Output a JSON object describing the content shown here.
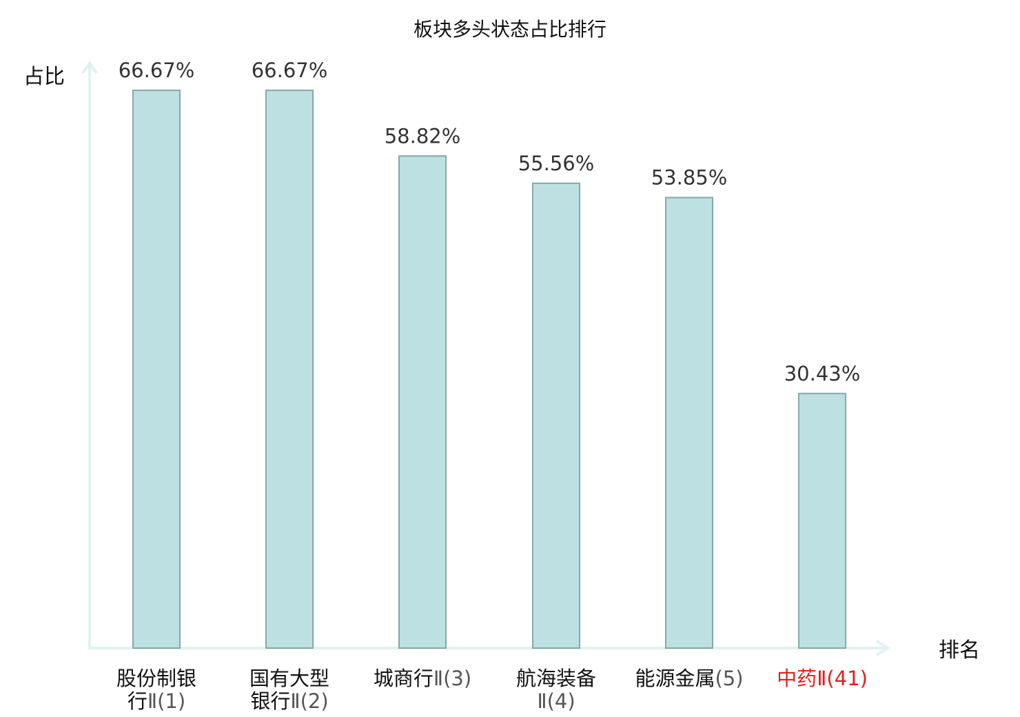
{
  "chart_data": {
    "type": "bar",
    "title": "板块多头状态占比排行",
    "ylabel": "占比",
    "xlabel": "排名",
    "ylim": [
      0,
      70
    ],
    "grid": false,
    "legend": "none",
    "categories": [
      {
        "lines": [
          "股份制银",
          "行"
        ],
        "rank": "Ⅱ(1)",
        "highlight": false
      },
      {
        "lines": [
          "国有大型",
          "银行"
        ],
        "rank": "Ⅱ(2)",
        "highlight": false
      },
      {
        "lines": [
          "城商行"
        ],
        "rank": "Ⅱ(3)",
        "highlight": false
      },
      {
        "lines": [
          "航海装备",
          ""
        ],
        "rank": "Ⅱ(4)",
        "highlight": false
      },
      {
        "lines": [
          "能源金属"
        ],
        "rank": "(5)",
        "highlight": false
      },
      {
        "lines": [
          "中药"
        ],
        "rank": "Ⅱ(41)",
        "highlight": true
      }
    ],
    "values": [
      66.67,
      66.67,
      58.82,
      55.56,
      53.85,
      30.43
    ],
    "value_labels": [
      "66.67%",
      "66.67%",
      "58.82%",
      "55.56%",
      "53.85%",
      "30.43%"
    ],
    "colors": {
      "bar_fill": "#bde1e3",
      "bar_stroke": "#86a7a8",
      "axis": "#e0f2f0",
      "highlight": "#e02020"
    }
  }
}
